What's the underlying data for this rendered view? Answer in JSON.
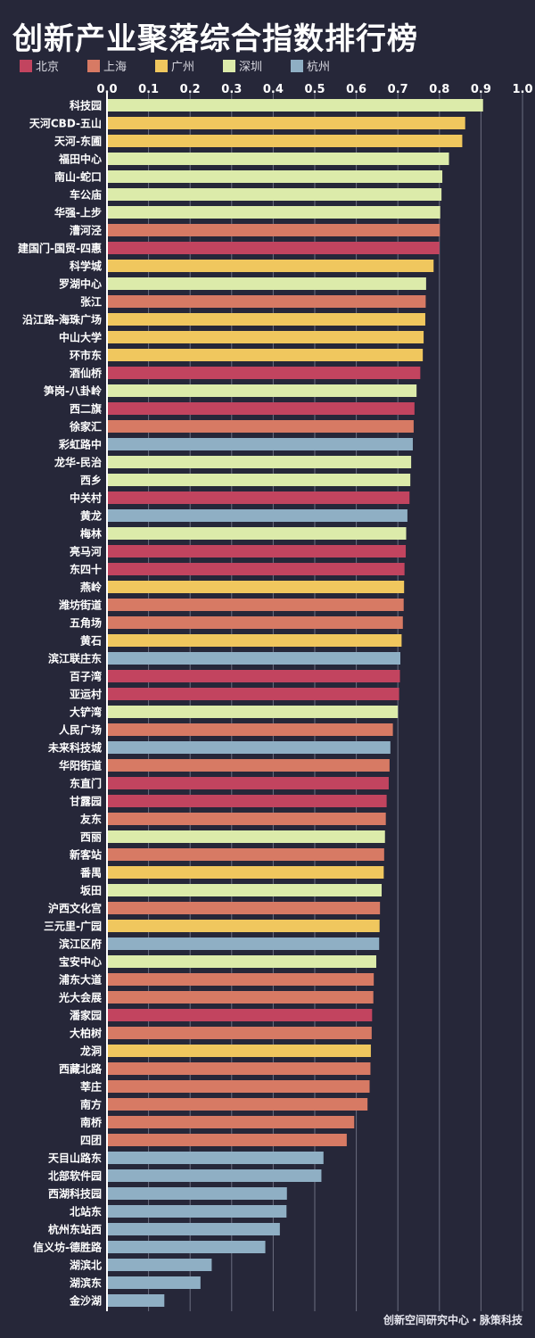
{
  "title": "创新产业聚落综合指数排行榜",
  "footer": "创新空间研究中心・脉策科技",
  "colors": {
    "background": "#262739",
    "grid": "#6b6d80",
    "axis": "#ffffff",
    "label": "#ffffff"
  },
  "legend": [
    {
      "name": "北京",
      "color": "#c2445f"
    },
    {
      "name": "上海",
      "color": "#d77a64"
    },
    {
      "name": "广州",
      "color": "#f0c75e"
    },
    {
      "name": "深圳",
      "color": "#dcebaa"
    },
    {
      "name": "杭州",
      "color": "#8fafc4"
    }
  ],
  "chart_data": {
    "type": "bar",
    "orientation": "horizontal",
    "xlim": [
      0,
      1.0
    ],
    "ticks": [
      "0.0",
      "0.1",
      "0.2",
      "0.3",
      "0.4",
      "0.5",
      "0.6",
      "0.7",
      "0.8",
      "0.9",
      "1.0"
    ],
    "tick_values": [
      0,
      0.1,
      0.2,
      0.3,
      0.4,
      0.5,
      0.6,
      0.7,
      0.8,
      0.9,
      1.0
    ],
    "grid": true,
    "bars": [
      {
        "label": "科技园",
        "value": 0.905,
        "city": "深圳"
      },
      {
        "label": "天河CBD-五山",
        "value": 0.862,
        "city": "广州"
      },
      {
        "label": "天河-东圃",
        "value": 0.855,
        "city": "广州"
      },
      {
        "label": "福田中心",
        "value": 0.823,
        "city": "深圳"
      },
      {
        "label": "南山-蛇口",
        "value": 0.807,
        "city": "深圳"
      },
      {
        "label": "车公庙",
        "value": 0.805,
        "city": "深圳"
      },
      {
        "label": "华强-上步",
        "value": 0.802,
        "city": "深圳"
      },
      {
        "label": "漕河泾",
        "value": 0.801,
        "city": "上海"
      },
      {
        "label": "建国门-国贸-四惠",
        "value": 0.8,
        "city": "北京"
      },
      {
        "label": "科学城",
        "value": 0.786,
        "city": "广州"
      },
      {
        "label": "罗湖中心",
        "value": 0.768,
        "city": "深圳"
      },
      {
        "label": "张江",
        "value": 0.767,
        "city": "上海"
      },
      {
        "label": "沿江路-海珠广场",
        "value": 0.766,
        "city": "广州"
      },
      {
        "label": "中山大学",
        "value": 0.762,
        "city": "广州"
      },
      {
        "label": "环市东",
        "value": 0.76,
        "city": "广州"
      },
      {
        "label": "酒仙桥",
        "value": 0.754,
        "city": "北京"
      },
      {
        "label": "笋岗-八卦岭",
        "value": 0.745,
        "city": "深圳"
      },
      {
        "label": "西二旗",
        "value": 0.74,
        "city": "北京"
      },
      {
        "label": "徐家汇",
        "value": 0.738,
        "city": "上海"
      },
      {
        "label": "彩虹路中",
        "value": 0.736,
        "city": "杭州"
      },
      {
        "label": "龙华-民治",
        "value": 0.732,
        "city": "深圳"
      },
      {
        "label": "西乡",
        "value": 0.73,
        "city": "深圳"
      },
      {
        "label": "中关村",
        "value": 0.728,
        "city": "北京"
      },
      {
        "label": "黄龙",
        "value": 0.723,
        "city": "杭州"
      },
      {
        "label": "梅林",
        "value": 0.72,
        "city": "深圳"
      },
      {
        "label": "亮马河",
        "value": 0.719,
        "city": "北京"
      },
      {
        "label": "东四十",
        "value": 0.716,
        "city": "北京"
      },
      {
        "label": "燕岭",
        "value": 0.715,
        "city": "广州"
      },
      {
        "label": "潍坊街道",
        "value": 0.714,
        "city": "上海"
      },
      {
        "label": "五角场",
        "value": 0.712,
        "city": "上海"
      },
      {
        "label": "黄石",
        "value": 0.709,
        "city": "广州"
      },
      {
        "label": "滨江联庄东",
        "value": 0.706,
        "city": "杭州"
      },
      {
        "label": "百子湾",
        "value": 0.705,
        "city": "北京"
      },
      {
        "label": "亚运村",
        "value": 0.703,
        "city": "北京"
      },
      {
        "label": "大铲湾",
        "value": 0.7,
        "city": "深圳"
      },
      {
        "label": "人民广场",
        "value": 0.688,
        "city": "上海"
      },
      {
        "label": "未来科技城",
        "value": 0.682,
        "city": "杭州"
      },
      {
        "label": "华阳街道",
        "value": 0.68,
        "city": "上海"
      },
      {
        "label": "东直门",
        "value": 0.678,
        "city": "北京"
      },
      {
        "label": "甘露园",
        "value": 0.673,
        "city": "北京"
      },
      {
        "label": "友东",
        "value": 0.671,
        "city": "上海"
      },
      {
        "label": "西丽",
        "value": 0.669,
        "city": "深圳"
      },
      {
        "label": "新客站",
        "value": 0.667,
        "city": "上海"
      },
      {
        "label": "番禺",
        "value": 0.666,
        "city": "广州"
      },
      {
        "label": "坂田",
        "value": 0.661,
        "city": "深圳"
      },
      {
        "label": "沪西文化宫",
        "value": 0.657,
        "city": "上海"
      },
      {
        "label": "三元里-广园",
        "value": 0.656,
        "city": "广州"
      },
      {
        "label": "滨江区府",
        "value": 0.655,
        "city": "杭州"
      },
      {
        "label": "宝安中心",
        "value": 0.648,
        "city": "深圳"
      },
      {
        "label": "浦东大道",
        "value": 0.642,
        "city": "上海"
      },
      {
        "label": "光大会展",
        "value": 0.641,
        "city": "上海"
      },
      {
        "label": "潘家园",
        "value": 0.638,
        "city": "北京"
      },
      {
        "label": "大柏树",
        "value": 0.637,
        "city": "上海"
      },
      {
        "label": "龙洞",
        "value": 0.635,
        "city": "广州"
      },
      {
        "label": "西藏北路",
        "value": 0.634,
        "city": "上海"
      },
      {
        "label": "莘庄",
        "value": 0.632,
        "city": "上海"
      },
      {
        "label": "南方",
        "value": 0.627,
        "city": "上海"
      },
      {
        "label": "南桥",
        "value": 0.595,
        "city": "上海"
      },
      {
        "label": "四团",
        "value": 0.577,
        "city": "上海"
      },
      {
        "label": "天目山路东",
        "value": 0.521,
        "city": "杭州"
      },
      {
        "label": "北部软件园",
        "value": 0.516,
        "city": "杭州"
      },
      {
        "label": "西湖科技园",
        "value": 0.433,
        "city": "杭州"
      },
      {
        "label": "北站东",
        "value": 0.432,
        "city": "杭州"
      },
      {
        "label": "杭州东站西",
        "value": 0.416,
        "city": "杭州"
      },
      {
        "label": "信义坊-德胜路",
        "value": 0.381,
        "city": "杭州"
      },
      {
        "label": "湖滨北",
        "value": 0.252,
        "city": "杭州"
      },
      {
        "label": "湖滨东",
        "value": 0.225,
        "city": "杭州"
      },
      {
        "label": "金沙湖",
        "value": 0.138,
        "city": "杭州"
      }
    ]
  }
}
